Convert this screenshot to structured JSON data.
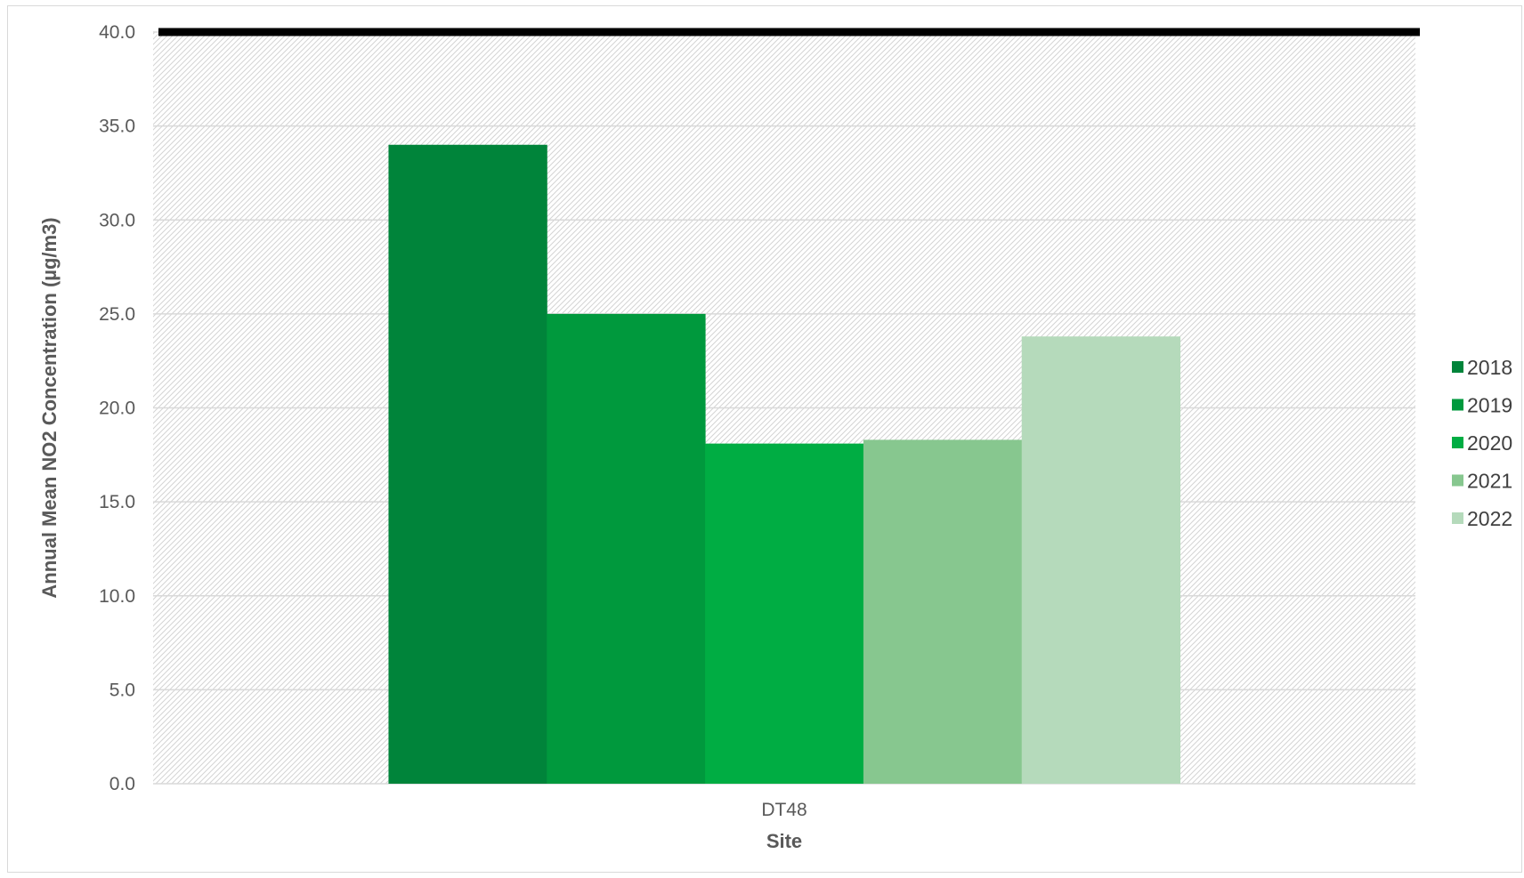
{
  "chart_data": {
    "type": "bar",
    "title": "",
    "xlabel": "Site",
    "ylabel": "Annual Mean NO2 Concentration (µg/m3)",
    "categories": [
      "DT48"
    ],
    "series": [
      {
        "name": "2018",
        "values": [
          34.0
        ],
        "color": "#00843a"
      },
      {
        "name": "2019",
        "values": [
          25.0
        ],
        "color": "#00993d"
      },
      {
        "name": "2020",
        "values": [
          18.1
        ],
        "color": "#00ad43"
      },
      {
        "name": "2021",
        "values": [
          18.3
        ],
        "color": "#87c78f"
      },
      {
        "name": "2022",
        "values": [
          23.8
        ],
        "color": "#b5dabb"
      }
    ],
    "ylim": [
      0,
      40
    ],
    "yticks": [
      "0.0",
      "5.0",
      "10.0",
      "15.0",
      "20.0",
      "25.0",
      "30.0",
      "35.0",
      "40.0"
    ],
    "reference_line": {
      "value": 40.0,
      "color": "#000000"
    },
    "grid": true,
    "legend_position": "right"
  }
}
